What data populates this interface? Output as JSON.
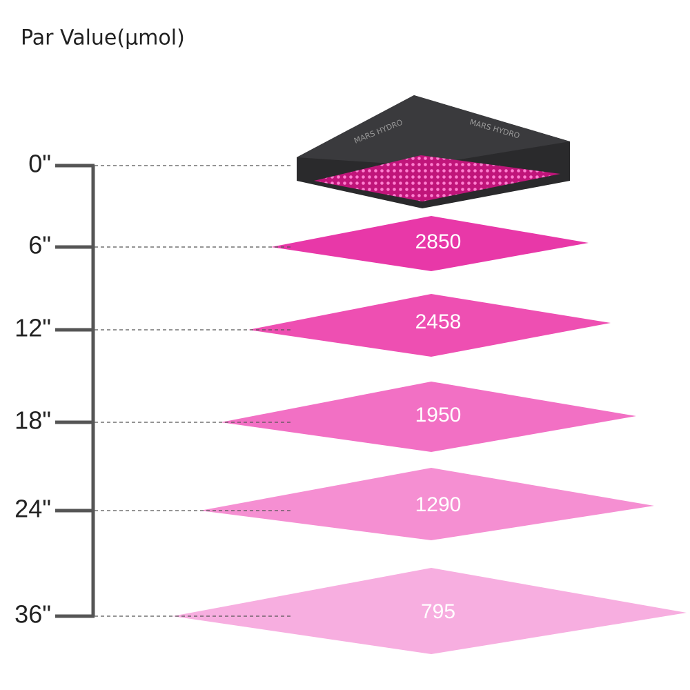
{
  "title": "Par Value(µmol)",
  "brand": "MARS HYDRO",
  "levels": [
    {
      "height": "0\""
    },
    {
      "height": "6\"",
      "par": 2850
    },
    {
      "height": "12\"",
      "par": 2458
    },
    {
      "height": "18\"",
      "par": 1950
    },
    {
      "height": "24\"",
      "par": 1290
    },
    {
      "height": "36\"",
      "par": 795
    }
  ]
}
